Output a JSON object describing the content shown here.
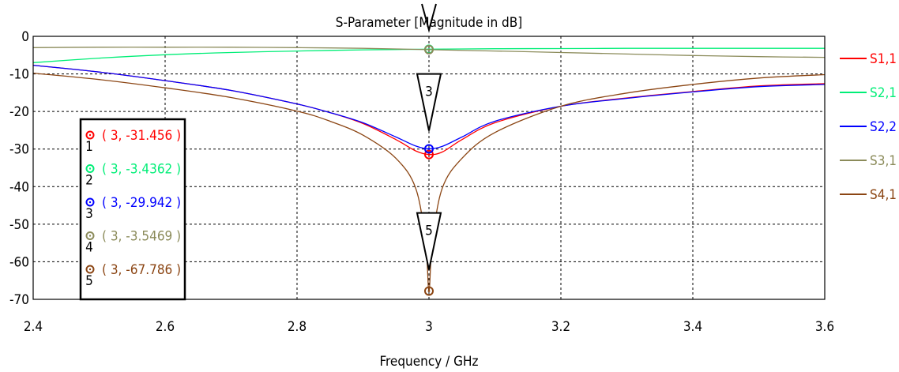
{
  "chart_data": {
    "type": "line",
    "title": "S-Parameter [Magnitude in dB]",
    "xlabel": "Frequency / GHz",
    "ylabel": "",
    "xlim": [
      2.4,
      3.6
    ],
    "ylim": [
      -70,
      0
    ],
    "xticks": [
      "2.4",
      "2.6",
      "2.8",
      "3",
      "3.2",
      "3.4",
      "3.6"
    ],
    "yticks": [
      "0",
      "-10",
      "-20",
      "-30",
      "-40",
      "-50",
      "-60",
      "-70"
    ],
    "grid": true,
    "legend_position": "right",
    "series": [
      {
        "name": "S1,1",
        "color": "#ff0000",
        "x": [
          2.4,
          2.5,
          2.6,
          2.7,
          2.8,
          2.85,
          2.9,
          2.95,
          2.98,
          3.0,
          3.02,
          3.05,
          3.1,
          3.2,
          3.3,
          3.4,
          3.5,
          3.6
        ],
        "y": [
          -7.7,
          -9.5,
          -11.8,
          -14.4,
          -18.0,
          -20.3,
          -23.2,
          -27.5,
          -30.5,
          -31.456,
          -30.8,
          -27.5,
          -23.0,
          -18.6,
          -16.4,
          -14.7,
          -13.2,
          -12.6
        ]
      },
      {
        "name": "S2,1",
        "color": "#00ee77",
        "x": [
          2.4,
          2.5,
          2.6,
          2.7,
          2.8,
          2.9,
          3.0,
          3.1,
          3.2,
          3.3,
          3.4,
          3.5,
          3.6
        ],
        "y": [
          -7.0,
          -5.8,
          -4.9,
          -4.3,
          -3.9,
          -3.6,
          -3.4362,
          -3.3,
          -3.25,
          -3.2,
          -3.2,
          -3.2,
          -3.2
        ]
      },
      {
        "name": "S2,2",
        "color": "#0000ff",
        "x": [
          2.4,
          2.5,
          2.6,
          2.7,
          2.8,
          2.85,
          2.9,
          2.95,
          2.98,
          3.0,
          3.02,
          3.05,
          3.1,
          3.2,
          3.3,
          3.4,
          3.5,
          3.6
        ],
        "y": [
          -7.7,
          -9.5,
          -11.8,
          -14.4,
          -18.0,
          -20.3,
          -23.0,
          -26.8,
          -29.2,
          -29.942,
          -29.3,
          -26.8,
          -22.6,
          -18.6,
          -16.5,
          -14.8,
          -13.4,
          -12.8
        ]
      },
      {
        "name": "S3,1",
        "color": "#8b8b5a",
        "x": [
          2.4,
          2.5,
          2.6,
          2.7,
          2.8,
          2.9,
          3.0,
          3.1,
          3.2,
          3.3,
          3.4,
          3.5,
          3.6
        ],
        "y": [
          -3.0,
          -2.9,
          -2.9,
          -2.9,
          -3.0,
          -3.2,
          -3.5469,
          -3.9,
          -4.3,
          -4.7,
          -5.1,
          -5.4,
          -5.6
        ]
      },
      {
        "name": "S4,1",
        "color": "#8b4513",
        "x": [
          2.4,
          2.5,
          2.6,
          2.7,
          2.8,
          2.85,
          2.9,
          2.95,
          2.98,
          2.995,
          3.0,
          3.005,
          3.02,
          3.05,
          3.1,
          3.2,
          3.3,
          3.4,
          3.5,
          3.6
        ],
        "y": [
          -9.8,
          -11.5,
          -13.7,
          -16.3,
          -19.9,
          -22.6,
          -26.3,
          -32.5,
          -40.5,
          -55.0,
          -67.786,
          -55.0,
          -40.5,
          -32.5,
          -25.6,
          -18.6,
          -15.1,
          -12.8,
          -11.1,
          -10.2
        ]
      }
    ],
    "markers": [
      {
        "id": "1",
        "x": 3,
        "y": -31.456,
        "label": "( 3, -31.456 )",
        "color": "#ff0000"
      },
      {
        "id": "2",
        "x": 3,
        "y": -3.4362,
        "label": "( 3, -3.4362 )",
        "color": "#00ee77"
      },
      {
        "id": "3",
        "x": 3,
        "y": -29.942,
        "label": "( 3, -29.942 )",
        "color": "#0000ff"
      },
      {
        "id": "4",
        "x": 3,
        "y": -3.5469,
        "label": "( 3, -3.5469 )",
        "color": "#8b8b5a"
      },
      {
        "id": "5",
        "x": 3,
        "y": -67.786,
        "label": "( 3, -67.786 )",
        "color": "#8b4513"
      }
    ],
    "marker_flags": [
      {
        "label": "3",
        "x": 3,
        "y": -29.942
      },
      {
        "label": "5",
        "x": 3,
        "y": -67.786
      }
    ]
  }
}
